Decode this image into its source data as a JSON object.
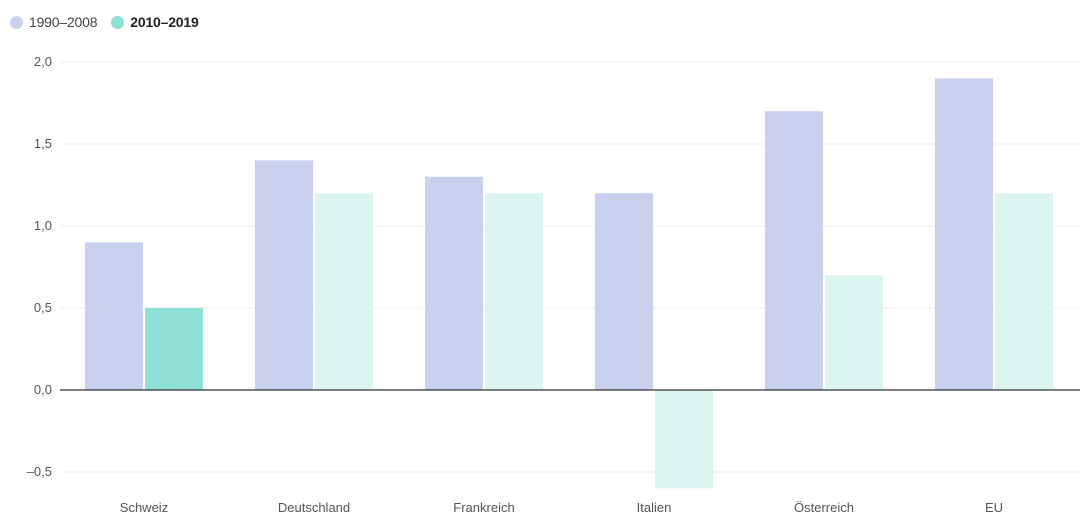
{
  "legend": [
    {
      "label": "1990–2008",
      "color": "#c9d1ee",
      "bold": false
    },
    {
      "label": "2010–2019",
      "color": "#8fe0d6",
      "bold": true
    }
  ],
  "chart_data": {
    "type": "bar",
    "categories": [
      "Schweiz",
      "Deutschland",
      "Frankreich",
      "Italien",
      "Österreich",
      "EU"
    ],
    "series": [
      {
        "name": "1990–2008",
        "values": [
          0.9,
          1.4,
          1.3,
          1.2,
          1.7,
          1.9
        ],
        "color": "#c9d1ee"
      },
      {
        "name": "2010–2019",
        "values": [
          0.5,
          1.2,
          1.2,
          -0.6,
          0.7,
          1.2
        ],
        "color": "#dcf5f1",
        "highlight_color": "#8fe0d6",
        "highlight_index": 0
      }
    ],
    "yticks": [
      2.0,
      1.5,
      1.0,
      0.5,
      0.0,
      -0.5
    ],
    "ytick_labels": [
      "2,0",
      "1,5",
      "1,0",
      "0,5",
      "0,0",
      "–0,5"
    ],
    "ylim": [
      -0.6,
      2.0
    ],
    "grid": true,
    "legend_position": "top-left"
  }
}
